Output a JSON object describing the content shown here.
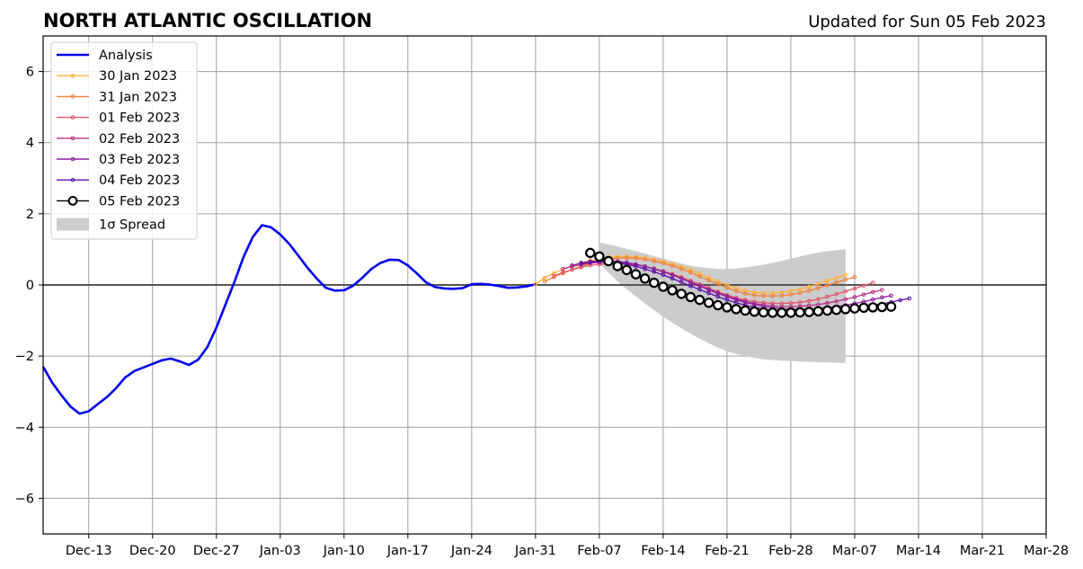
{
  "chart_data": {
    "type": "line",
    "title": "NORTH ATLANTIC OSCILLATION",
    "subtitle": "Updated for Sun 05 Feb 2023",
    "xlabel": "",
    "ylabel": "",
    "x_start": "2023-12-08",
    "xlim_dates": [
      "Dec-08",
      "Mar-28"
    ],
    "ylim": [
      -7,
      7
    ],
    "yticks": [
      -6,
      -4,
      -2,
      0,
      2,
      4,
      6
    ],
    "ytick_labels": [
      "−6",
      "−4",
      "−2",
      "0",
      "2",
      "4",
      "6"
    ],
    "xticks": [
      {
        "label": "Dec-13",
        "day": 5
      },
      {
        "label": "Dec-20",
        "day": 12
      },
      {
        "label": "Dec-27",
        "day": 19
      },
      {
        "label": "Jan-03",
        "day": 26
      },
      {
        "label": "Jan-10",
        "day": 33
      },
      {
        "label": "Jan-17",
        "day": 40
      },
      {
        "label": "Jan-24",
        "day": 47
      },
      {
        "label": "Jan-31",
        "day": 54
      },
      {
        "label": "Feb-07",
        "day": 61
      },
      {
        "label": "Feb-14",
        "day": 68
      },
      {
        "label": "Feb-21",
        "day": 75
      },
      {
        "label": "Feb-28",
        "day": 82
      },
      {
        "label": "Mar-07",
        "day": 89
      },
      {
        "label": "Mar-14",
        "day": 96
      },
      {
        "label": "Mar-21",
        "day": 103
      },
      {
        "label": "Mar-28",
        "day": 110
      }
    ],
    "grid": true,
    "legend_position": "top-left",
    "spread_label": "1σ Spread",
    "spread": {
      "color": "#cccccc",
      "x_start": 61,
      "upper": [
        1.2,
        1.14,
        1.08,
        1.01,
        0.95,
        0.88,
        0.81,
        0.74,
        0.67,
        0.6,
        0.54,
        0.5,
        0.47,
        0.45,
        0.45,
        0.46,
        0.49,
        0.53,
        0.57,
        0.62,
        0.68,
        0.74,
        0.8,
        0.86,
        0.91,
        0.95,
        0.98,
        1.0
      ],
      "lower": [
        0.6,
        0.35,
        0.1,
        -0.12,
        -0.32,
        -0.52,
        -0.71,
        -0.89,
        -1.06,
        -1.22,
        -1.37,
        -1.51,
        -1.64,
        -1.76,
        -1.86,
        -1.94,
        -2.0,
        -2.05,
        -2.09,
        -2.11,
        -2.13,
        -2.14,
        -2.15,
        -2.16,
        -2.17,
        -2.18,
        -2.19,
        -2.2
      ]
    },
    "analysis": {
      "name": "Analysis",
      "color": "#0000ee",
      "x_start": 0,
      "values": [
        -2.3,
        -2.75,
        -3.1,
        -3.42,
        -3.62,
        -3.55,
        -3.35,
        -3.15,
        -2.9,
        -2.6,
        -2.42,
        -2.32,
        -2.22,
        -2.12,
        -2.07,
        -2.15,
        -2.25,
        -2.1,
        -1.75,
        -1.2,
        -0.55,
        0.1,
        0.8,
        1.35,
        1.68,
        1.62,
        1.42,
        1.15,
        0.82,
        0.48,
        0.18,
        -0.08,
        -0.16,
        -0.15,
        -0.02,
        0.2,
        0.45,
        0.62,
        0.71,
        0.7,
        0.55,
        0.32,
        0.07,
        -0.06,
        -0.1,
        -0.11,
        -0.09,
        0.02,
        0.03,
        0.01,
        -0.03,
        -0.08,
        -0.07,
        -0.04,
        0.02
      ]
    },
    "series": [
      {
        "name": "30 Jan 2023",
        "color": "#ffb03a",
        "marker": "dot",
        "x_start": 54,
        "values": [
          0.02,
          0.2,
          0.33,
          0.44,
          0.54,
          0.62,
          0.69,
          0.74,
          0.78,
          0.8,
          0.8,
          0.79,
          0.76,
          0.72,
          0.66,
          0.59,
          0.51,
          0.42,
          0.32,
          0.21,
          0.1,
          0.0,
          -0.09,
          -0.16,
          -0.21,
          -0.23,
          -0.23,
          -0.21,
          -0.17,
          -0.12,
          -0.05,
          0.03,
          0.12,
          0.2,
          0.28
        ]
      },
      {
        "name": "31 Jan 2023",
        "color": "#f07f3c",
        "marker": "dot",
        "x_start": 55,
        "values": [
          0.1,
          0.22,
          0.33,
          0.43,
          0.52,
          0.6,
          0.67,
          0.72,
          0.75,
          0.76,
          0.75,
          0.72,
          0.67,
          0.61,
          0.54,
          0.45,
          0.35,
          0.24,
          0.13,
          0.02,
          -0.08,
          -0.17,
          -0.24,
          -0.29,
          -0.31,
          -0.31,
          -0.3,
          -0.27,
          -0.22,
          -0.16,
          -0.09,
          -0.01,
          0.07,
          0.15,
          0.22
        ]
      },
      {
        "name": "01 Feb 2023",
        "color": "#e0586a",
        "marker": "dot",
        "x_start": 56,
        "values": [
          0.25,
          0.35,
          0.43,
          0.5,
          0.55,
          0.58,
          0.6,
          0.6,
          0.59,
          0.56,
          0.52,
          0.46,
          0.39,
          0.31,
          0.22,
          0.12,
          0.02,
          -0.09,
          -0.19,
          -0.28,
          -0.36,
          -0.42,
          -0.47,
          -0.5,
          -0.52,
          -0.52,
          -0.51,
          -0.49,
          -0.45,
          -0.4,
          -0.33,
          -0.26,
          -0.18,
          -0.1,
          -0.02,
          0.06
        ]
      },
      {
        "name": "02 Feb 2023",
        "color": "#b8318a",
        "marker": "dot",
        "x_start": 57,
        "values": [
          0.45,
          0.52,
          0.57,
          0.61,
          0.63,
          0.64,
          0.63,
          0.61,
          0.57,
          0.52,
          0.45,
          0.37,
          0.28,
          0.18,
          0.08,
          -0.02,
          -0.12,
          -0.22,
          -0.31,
          -0.39,
          -0.46,
          -0.52,
          -0.56,
          -0.59,
          -0.61,
          -0.61,
          -0.6,
          -0.58,
          -0.55,
          -0.51,
          -0.46,
          -0.4,
          -0.34,
          -0.27,
          -0.2,
          -0.14
        ]
      },
      {
        "name": "03 Feb 2023",
        "color": "#8b1fa0",
        "marker": "dot",
        "x_start": 58,
        "values": [
          0.55,
          0.62,
          0.66,
          0.68,
          0.68,
          0.66,
          0.63,
          0.58,
          0.52,
          0.45,
          0.37,
          0.28,
          0.18,
          0.07,
          -0.03,
          -0.14,
          -0.24,
          -0.33,
          -0.42,
          -0.49,
          -0.55,
          -0.6,
          -0.64,
          -0.67,
          -0.68,
          -0.69,
          -0.68,
          -0.67,
          -0.64,
          -0.61,
          -0.57,
          -0.52,
          -0.47,
          -0.41,
          -0.35,
          -0.3
        ]
      },
      {
        "name": "04 Feb 2023",
        "color": "#5a10a8",
        "marker": "dot",
        "x_start": 59,
        "values": [
          0.6,
          0.64,
          0.66,
          0.65,
          0.62,
          0.58,
          0.52,
          0.45,
          0.37,
          0.28,
          0.18,
          0.08,
          -0.03,
          -0.13,
          -0.23,
          -0.33,
          -0.42,
          -0.5,
          -0.57,
          -0.63,
          -0.68,
          -0.72,
          -0.74,
          -0.76,
          -0.77,
          -0.77,
          -0.76,
          -0.75,
          -0.73,
          -0.7,
          -0.66,
          -0.62,
          -0.58,
          -0.53,
          -0.48,
          -0.43,
          -0.38
        ]
      },
      {
        "name": "05 Feb 2023",
        "color": "#000000",
        "marker": "circle",
        "x_start": 60,
        "values": [
          0.9,
          0.8,
          0.67,
          0.53,
          0.42,
          0.3,
          0.18,
          0.06,
          -0.05,
          -0.15,
          -0.25,
          -0.34,
          -0.42,
          -0.5,
          -0.57,
          -0.63,
          -0.68,
          -0.72,
          -0.75,
          -0.77,
          -0.78,
          -0.78,
          -0.78,
          -0.77,
          -0.76,
          -0.74,
          -0.72,
          -0.7,
          -0.68,
          -0.66,
          -0.64,
          -0.63,
          -0.62,
          -0.61
        ]
      }
    ]
  }
}
